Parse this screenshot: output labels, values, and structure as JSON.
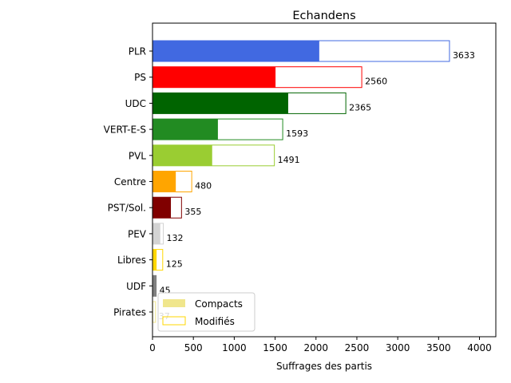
{
  "chart_data": {
    "type": "bar",
    "orientation": "horizontal",
    "title": "Echandens",
    "xlabel": "Suffrages des partis",
    "ylabel": "",
    "xlim": [
      0,
      4200
    ],
    "xticks": [
      0,
      500,
      1000,
      1500,
      2000,
      2500,
      3000,
      3500,
      4000
    ],
    "grid": false,
    "legend_position": "bottom-left",
    "categories": [
      "PLR",
      "PS",
      "UDC",
      "VERT-E-S",
      "PVL",
      "Centre",
      "PST/Sol.",
      "PEV",
      "Libres",
      "UDF",
      "Pirates"
    ],
    "colors": [
      "#4169e1",
      "#ff0000",
      "#006400",
      "#228b22",
      "#9acd32",
      "#ffa500",
      "#800000",
      "#d3d3d3",
      "#ffd700",
      "#808080",
      "#f0e68c"
    ],
    "series": [
      {
        "name": "Compacts",
        "values": [
          2040,
          1505,
          1660,
          800,
          730,
          285,
          225,
          95,
          50,
          45,
          8
        ]
      },
      {
        "name": "Modifiés",
        "values": [
          3633,
          2560,
          2365,
          1593,
          1491,
          480,
          355,
          132,
          125,
          45,
          37
        ]
      }
    ],
    "value_labels": [
      "3633",
      "2560",
      "2365",
      "1593",
      "1491",
      "480",
      "355",
      "132",
      "125",
      "45",
      "37"
    ]
  }
}
